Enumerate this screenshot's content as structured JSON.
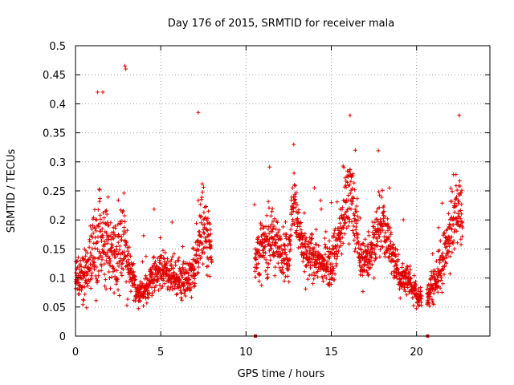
{
  "chart_data": {
    "type": "scatter",
    "title": "Day 176 of 2015, SRMTID for receiver mala",
    "xlabel": "GPS time / hours",
    "ylabel": "SRMTID / TECUs",
    "xlim": [
      0,
      24.3
    ],
    "ylim": [
      0,
      0.5
    ],
    "x_ticks": [
      0,
      5,
      10,
      15,
      20
    ],
    "x_tick_labels": [
      "0",
      "5",
      "10",
      "15",
      "20"
    ],
    "y_ticks": [
      0,
      0.05,
      0.1,
      0.15,
      0.2,
      0.25,
      0.3,
      0.35,
      0.4,
      0.45,
      0.5
    ],
    "y_tick_labels": [
      "0",
      "0.05",
      "0.1",
      "0.15",
      "0.2",
      "0.25",
      "0.3",
      "0.35",
      "0.4",
      "0.45",
      "0.5"
    ],
    "grid": true,
    "marker": "+",
    "color": "#e00000",
    "series": [
      {
        "name": "SRMTID",
        "profile_hours": [
          0.0,
          0.5,
          1.0,
          1.4,
          2.0,
          2.4,
          2.8,
          3.2,
          3.6,
          4.0,
          4.5,
          5.0,
          5.5,
          6.0,
          6.5,
          7.0,
          7.4,
          7.8,
          8.0,
          10.5,
          11.0,
          11.5,
          12.0,
          12.5,
          12.8,
          13.2,
          13.6,
          14.0,
          14.5,
          15.0,
          15.5,
          16.0,
          16.3,
          16.8,
          17.2,
          17.6,
          18.0,
          18.5,
          19.0,
          19.5,
          20.0,
          20.5,
          21.0,
          21.5,
          22.0,
          22.4,
          22.7
        ],
        "median_srmtid": [
          0.1,
          0.095,
          0.14,
          0.17,
          0.145,
          0.15,
          0.16,
          0.11,
          0.075,
          0.075,
          0.1,
          0.11,
          0.11,
          0.1,
          0.1,
          0.11,
          0.2,
          0.17,
          0.15,
          0.14,
          0.15,
          0.17,
          0.15,
          0.13,
          0.25,
          0.16,
          0.13,
          0.14,
          0.12,
          0.13,
          0.17,
          0.25,
          0.22,
          0.12,
          0.14,
          0.17,
          0.19,
          0.15,
          0.1,
          0.1,
          0.07,
          0.06,
          0.09,
          0.12,
          0.18,
          0.22,
          0.2
        ],
        "spread": [
          0.03,
          0.035,
          0.07,
          0.09,
          0.06,
          0.07,
          0.09,
          0.04,
          0.022,
          0.022,
          0.03,
          0.03,
          0.03,
          0.03,
          0.035,
          0.04,
          0.08,
          0.05,
          0.04,
          0.05,
          0.05,
          0.05,
          0.04,
          0.04,
          0.05,
          0.05,
          0.04,
          0.04,
          0.03,
          0.04,
          0.05,
          0.07,
          0.06,
          0.04,
          0.04,
          0.05,
          0.05,
          0.04,
          0.03,
          0.03,
          0.02,
          0.02,
          0.03,
          0.04,
          0.05,
          0.06,
          0.06
        ],
        "max_srmtid": 0.465,
        "min_srmtid": 0.03,
        "data_gaps_hours": [
          [
            8.0,
            10.5
          ],
          [
            20.3,
            20.6
          ]
        ]
      }
    ],
    "outside_range_markers_hours": [
      10.55,
      20.65
    ]
  }
}
